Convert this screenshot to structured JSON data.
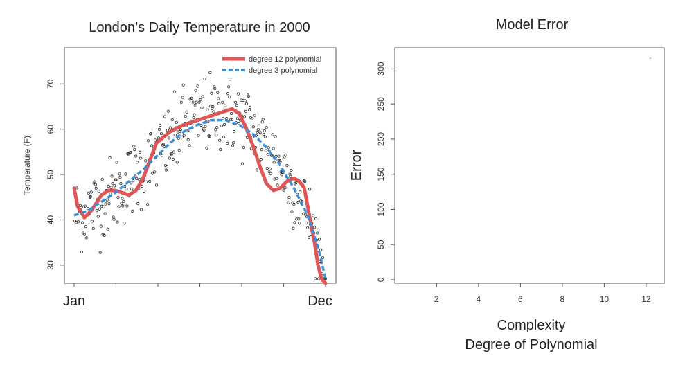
{
  "chart_data": [
    {
      "type": "scatter",
      "title": "London’s Daily Temperature in 2000",
      "xlabel": "",
      "ylabel": "Temperature (F)",
      "x_end_labels": [
        "Jan",
        "Dec"
      ],
      "xlim": [
        0,
        366
      ],
      "ylim": [
        26,
        78
      ],
      "yticks": [
        30,
        40,
        50,
        60,
        70
      ],
      "grid": false,
      "legend_position": "top-right",
      "legend": [
        {
          "name": "degree 12 polynomial",
          "color": "#e05555",
          "style": "solid"
        },
        {
          "name": "degree 3 polynomial",
          "color": "#3a8fdc",
          "style": "dashed"
        }
      ],
      "colors": {
        "points": "#222222",
        "deg12": "#e05555",
        "deg3": "#3a8fdc"
      },
      "series": [
        {
          "name": "degree 12 polynomial",
          "x": [
            0,
            5,
            15,
            25,
            40,
            50,
            60,
            70,
            80,
            90,
            100,
            110,
            120,
            140,
            160,
            180,
            200,
            220,
            230,
            240,
            250,
            260,
            270,
            280,
            290,
            300,
            310,
            320,
            328,
            335,
            340,
            346,
            350,
            355,
            360,
            363,
            366
          ],
          "y": [
            47,
            43,
            40.5,
            42,
            45.5,
            46.5,
            46.5,
            46,
            45.5,
            46.5,
            49,
            53,
            57,
            59.5,
            61,
            62,
            63,
            64,
            64.5,
            63.5,
            60.5,
            56.5,
            52,
            48,
            46.5,
            47,
            48.5,
            49.2,
            48.5,
            47,
            43,
            38,
            35,
            30,
            27,
            26.5,
            26
          ]
        },
        {
          "name": "degree 3 polynomial",
          "x": [
            0,
            20,
            40,
            60,
            80,
            100,
            120,
            140,
            160,
            180,
            200,
            220,
            240,
            260,
            280,
            300,
            320,
            340,
            355,
            366
          ],
          "y": [
            41,
            42,
            44,
            46,
            48.5,
            51,
            54,
            57,
            59.5,
            61,
            62,
            62,
            61,
            59,
            56,
            52,
            47,
            41,
            34,
            27
          ]
        }
      ]
    },
    {
      "type": "line",
      "title": "Model Error",
      "xlabel": "Complexity",
      "xlabel2": "Degree of Polynomial",
      "ylabel": "Error",
      "xlim": [
        0.5,
        12.5
      ],
      "ylim": [
        -5,
        330
      ],
      "xticks": [
        2,
        4,
        6,
        8,
        10,
        12
      ],
      "yticks": [
        0,
        50,
        100,
        150,
        200,
        250,
        300
      ],
      "grid": false,
      "series": [
        {
          "name": "",
          "x": [
            12.2
          ],
          "y": [
            315
          ]
        }
      ]
    }
  ]
}
